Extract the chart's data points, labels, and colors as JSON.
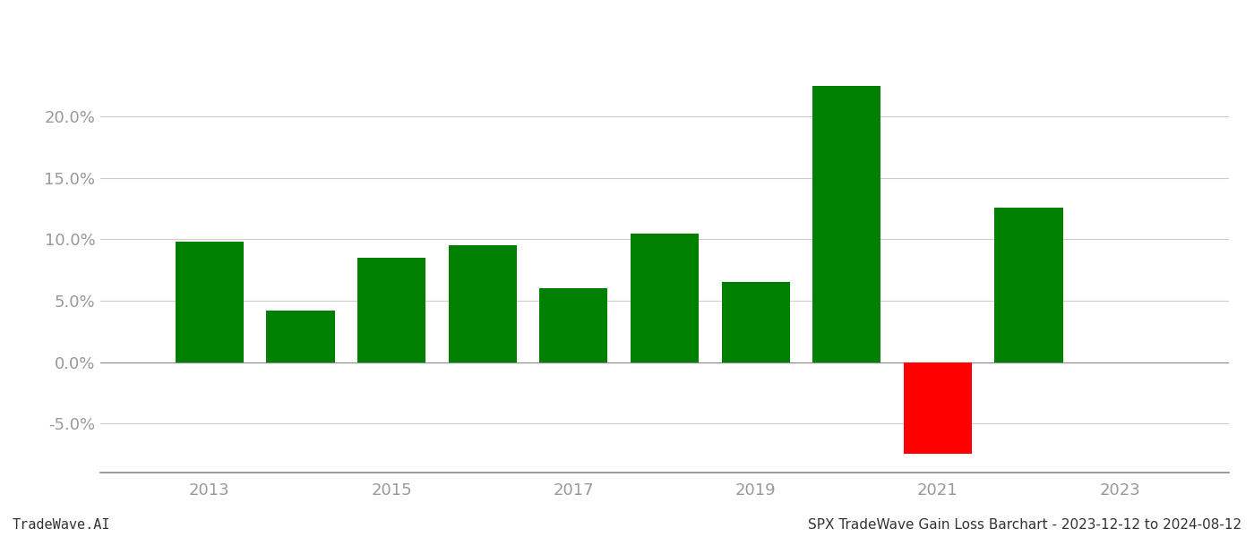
{
  "years": [
    2013,
    2014,
    2015,
    2016,
    2017,
    2018,
    2019,
    2020,
    2021,
    2022
  ],
  "values": [
    0.098,
    0.042,
    0.085,
    0.095,
    0.06,
    0.105,
    0.065,
    0.225,
    -0.075,
    0.126
  ],
  "colors": [
    "#008000",
    "#008000",
    "#008000",
    "#008000",
    "#008000",
    "#008000",
    "#008000",
    "#008000",
    "#ff0000",
    "#008000"
  ],
  "ylim": [
    -0.09,
    0.26
  ],
  "yticks": [
    -0.05,
    0.0,
    0.05,
    0.1,
    0.15,
    0.2
  ],
  "xtick_labels": [
    "2013",
    "2015",
    "2017",
    "2019",
    "2021",
    "2023"
  ],
  "xtick_positions": [
    2013,
    2015,
    2017,
    2019,
    2021,
    2023
  ],
  "xlim": [
    2011.8,
    2024.2
  ],
  "bar_width": 0.75,
  "title": "SPX TradeWave Gain Loss Barchart - 2023-12-12 to 2024-08-12",
  "watermark": "TradeWave.AI",
  "bg_color": "#ffffff",
  "grid_color": "#cccccc",
  "axis_label_color": "#999999",
  "title_color": "#333333",
  "watermark_color": "#333333",
  "title_fontsize": 11,
  "watermark_fontsize": 11,
  "tick_fontsize": 13
}
